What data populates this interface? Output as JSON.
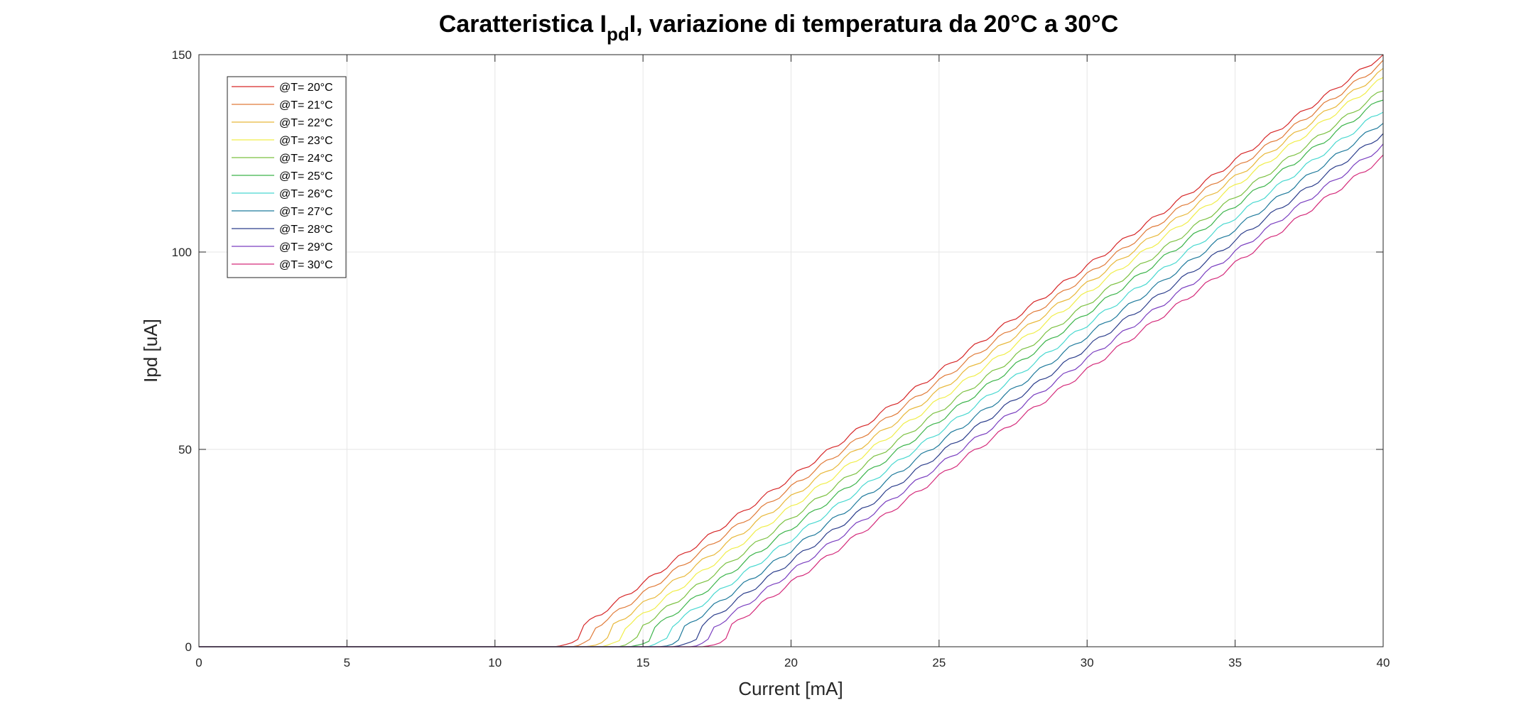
{
  "chart_data": {
    "type": "line",
    "title": {
      "prefix": "Caratteristica I",
      "subscript": "pd",
      "suffix": "I, variazione di temperatura da 20°C a 30°C"
    },
    "xlabel": "Current [mA]",
    "ylabel": "Ipd [uA]",
    "xlim": [
      0,
      40
    ],
    "ylim": [
      0,
      150
    ],
    "xticks": [
      0,
      5,
      10,
      15,
      20,
      25,
      30,
      35,
      40
    ],
    "yticks": [
      0,
      50,
      100,
      150
    ],
    "grid": true,
    "legend_position": "top-left",
    "series": [
      {
        "name": "@T= 20°C",
        "color": "#d62728",
        "threshold_mA": 12.0,
        "value_at_40mA": 150
      },
      {
        "name": "@T= 21°C",
        "color": "#e07b39",
        "threshold_mA": 12.5,
        "value_at_40mA": 148
      },
      {
        "name": "@T= 22°C",
        "color": "#e8b83a",
        "threshold_mA": 13.0,
        "value_at_40mA": 146
      },
      {
        "name": "@T= 23°C",
        "color": "#f0ee4a",
        "threshold_mA": 13.5,
        "value_at_40mA": 144
      },
      {
        "name": "@T= 24°C",
        "color": "#7cc142",
        "threshold_mA": 14.0,
        "value_at_40mA": 141
      },
      {
        "name": "@T= 25°C",
        "color": "#3cb44b",
        "threshold_mA": 14.5,
        "value_at_40mA": 139
      },
      {
        "name": "@T= 26°C",
        "color": "#48d8d0",
        "threshold_mA": 15.0,
        "value_at_40mA": 136
      },
      {
        "name": "@T= 27°C",
        "color": "#1f7a9c",
        "threshold_mA": 15.5,
        "value_at_40mA": 133
      },
      {
        "name": "@T= 28°C",
        "color": "#2c3e8c",
        "threshold_mA": 16.0,
        "value_at_40mA": 130
      },
      {
        "name": "@T= 29°C",
        "color": "#7a3fc0",
        "threshold_mA": 16.5,
        "value_at_40mA": 127
      },
      {
        "name": "@T= 30°C",
        "color": "#d42a7a",
        "threshold_mA": 17.0,
        "value_at_40mA": 124
      }
    ]
  }
}
